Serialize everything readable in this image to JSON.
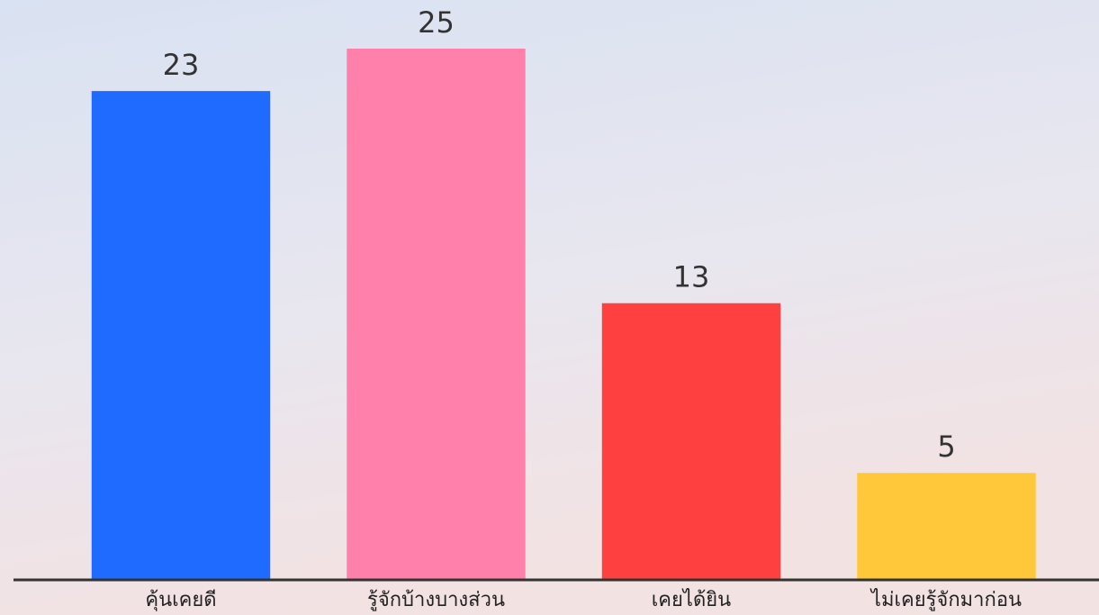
{
  "chart_data": {
    "type": "bar",
    "categories": [
      "คุ้นเคยดี",
      "รู้จักบ้างบางส่วน",
      "เคยได้ยิน",
      "ไม่เคยรู้จักมาก่อน"
    ],
    "values": [
      23,
      25,
      13,
      5
    ],
    "colors": [
      "#1f6bff",
      "#ff80aa",
      "#ff4040",
      "#ffc83a"
    ],
    "ylim": [
      0,
      25
    ]
  }
}
